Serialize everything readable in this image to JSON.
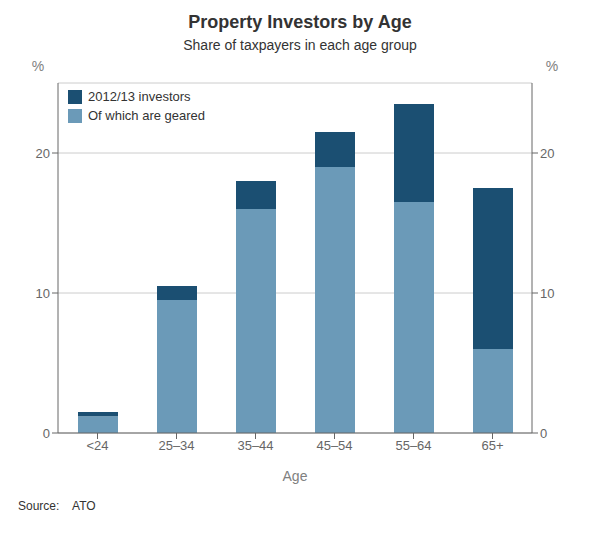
{
  "chart_data": {
    "type": "bar",
    "stacked": true,
    "title": "Property Investors by Age",
    "subtitle": "Share of taxpayers in each age group",
    "xlabel": "Age",
    "ylabel": "%",
    "y2label": "%",
    "source": "Source:    ATO",
    "categories": [
      "<24",
      "25–34",
      "35–44",
      "45–54",
      "55–64",
      "65+"
    ],
    "series": [
      {
        "name": "Of which are geared",
        "color": "#6b9ab8",
        "values": [
          1.2,
          9.5,
          16.0,
          19.0,
          16.5,
          6.0
        ]
      },
      {
        "name": "2012/13 investors",
        "color": "#1b4f72",
        "values": [
          0.3,
          1.0,
          2.0,
          2.5,
          7.0,
          11.5
        ]
      }
    ],
    "ylim": [
      0,
      25
    ],
    "yticks": [
      0,
      10,
      20
    ],
    "y2lim": [
      0,
      25
    ],
    "y2ticks": [
      0,
      10,
      20
    ],
    "grid": true,
    "legend": "upper left"
  }
}
